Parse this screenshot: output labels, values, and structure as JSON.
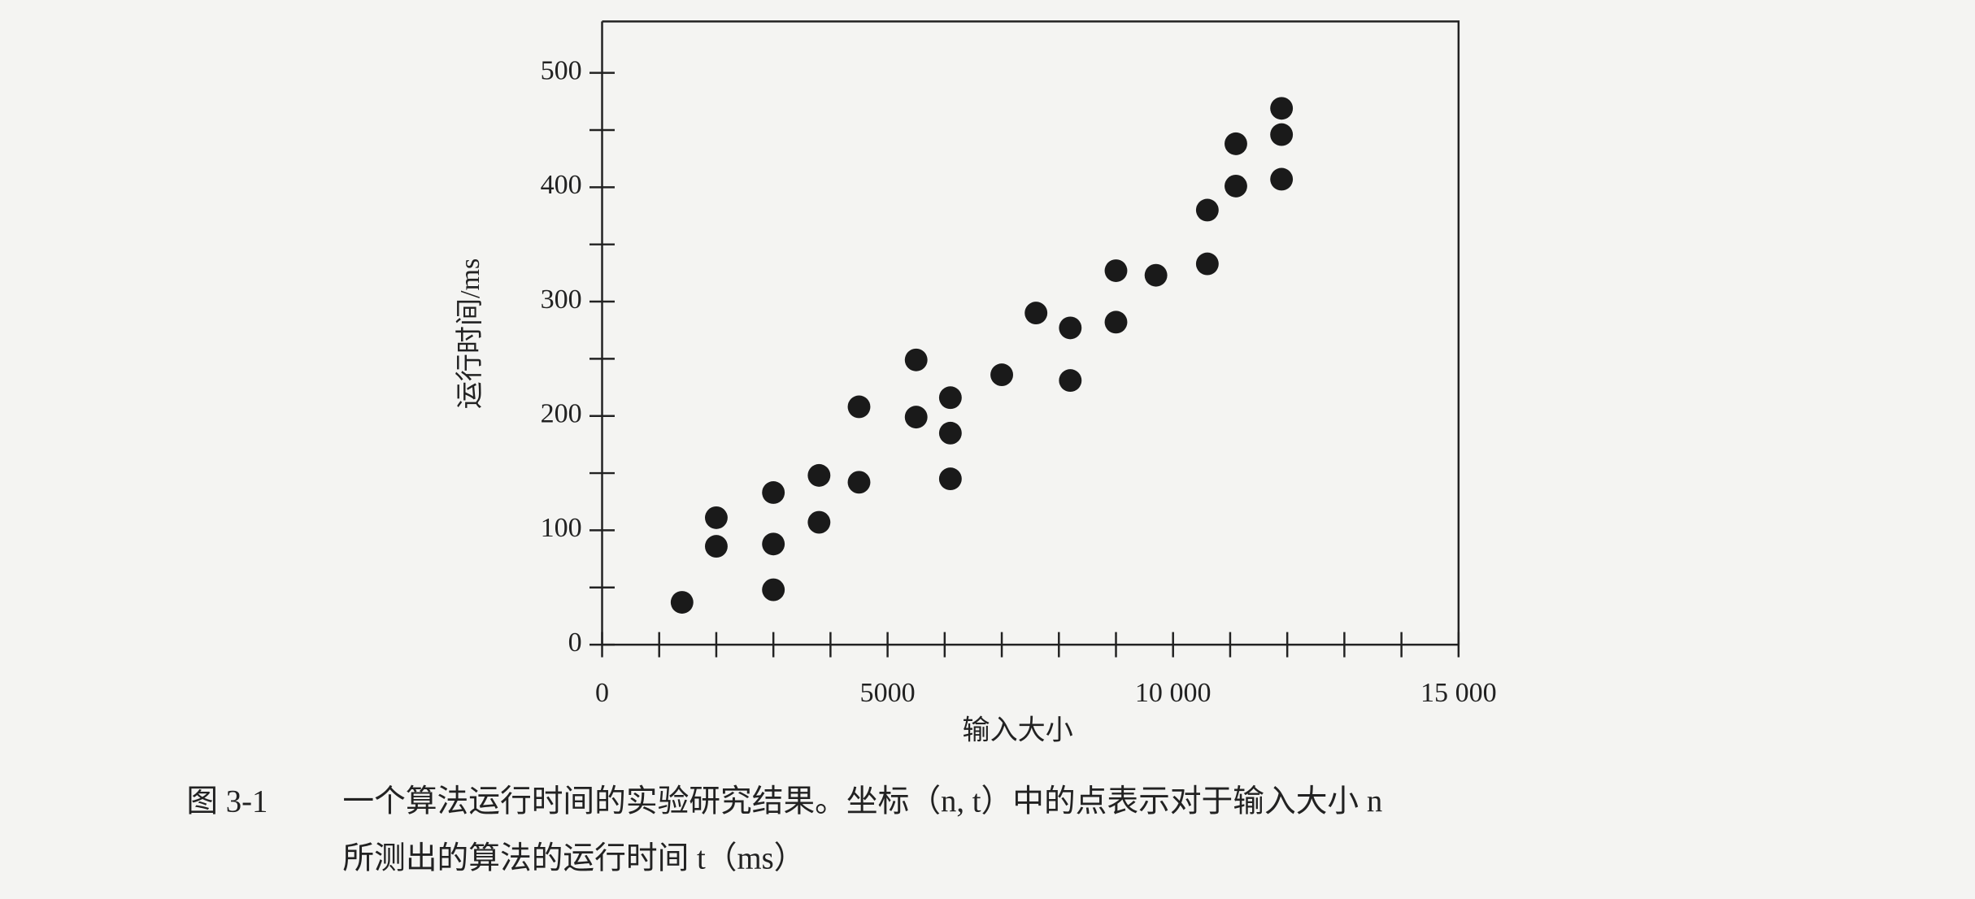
{
  "chart_data": {
    "type": "scatter",
    "x_label": "输入大小",
    "y_label": "运行时间/ms",
    "caption_label": "图 3-1",
    "caption_lines": [
      "一个算法运行时间的实验研究结果。坐标（n, t）中的点表示对于输入大小 n",
      "所测出的算法的运行时间 t（ms）"
    ],
    "xlim": [
      0,
      15000
    ],
    "ylim": [
      0,
      545
    ],
    "xticks": [
      0,
      5000,
      {
        "value": 10000,
        "label": "10 000"
      },
      {
        "value": 15000,
        "label": "15 000"
      }
    ],
    "x_minor_ticks": [
      1000,
      2000,
      3000,
      4000,
      6000,
      7000,
      8000,
      9000,
      11000,
      12000,
      13000,
      14000
    ],
    "yticks": [
      0,
      100,
      200,
      300,
      400,
      500
    ],
    "y_minor_ticks": [
      50,
      150,
      250,
      350,
      450
    ],
    "color": "#1a1a1a",
    "x": [
      1400,
      2000,
      2000,
      3000,
      3000,
      3000,
      3800,
      3800,
      4500,
      4500,
      5500,
      5500,
      6100,
      6100,
      6100,
      7000,
      7600,
      8200,
      8200,
      9000,
      9000,
      9700,
      10600,
      10600,
      11100,
      11100,
      11900,
      11900,
      11900
    ],
    "values": [
      37,
      111,
      86,
      133,
      88,
      48,
      148,
      107,
      208,
      142,
      249,
      199,
      216,
      185,
      145,
      236,
      290,
      277,
      231,
      327,
      282,
      323,
      380,
      333,
      438,
      401,
      469,
      446,
      407
    ]
  }
}
